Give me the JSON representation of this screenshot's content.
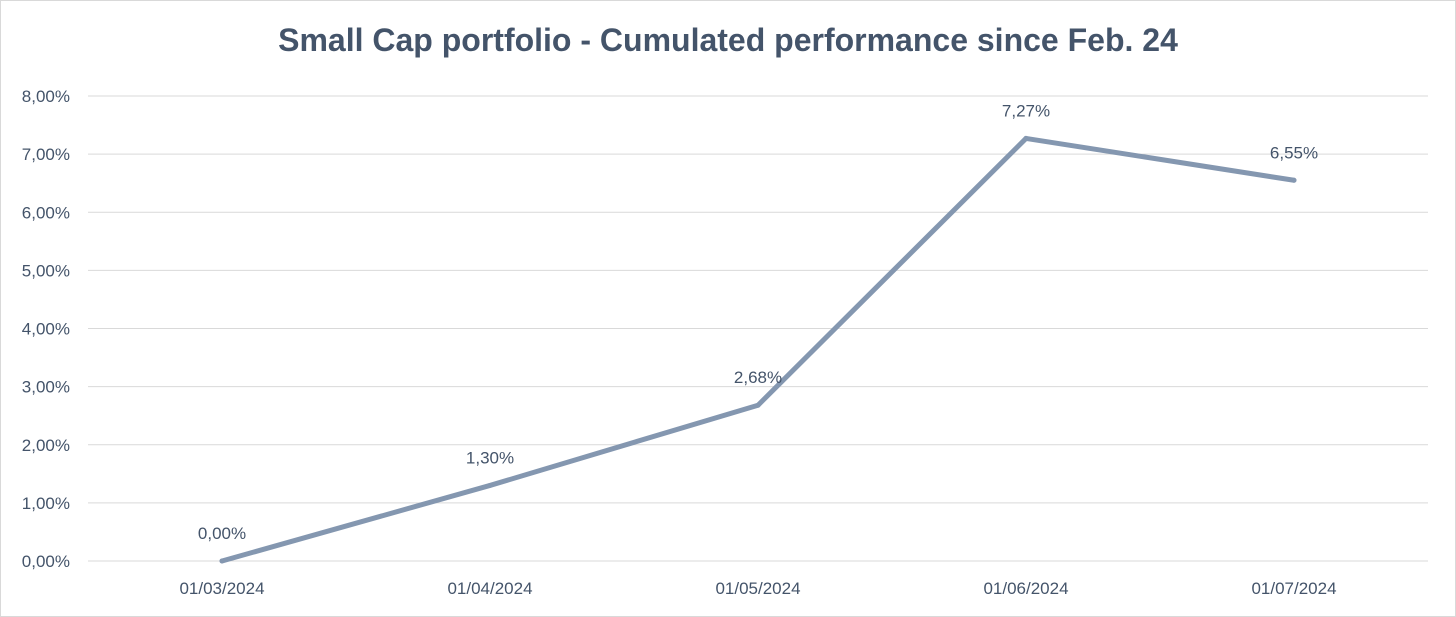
{
  "chart_data": {
    "type": "line",
    "title": "Small Cap portfolio - Cumulated performance since Feb. 24",
    "xlabel": "",
    "ylabel": "",
    "categories": [
      "01/03/2024",
      "01/04/2024",
      "01/05/2024",
      "01/06/2024",
      "01/07/2024"
    ],
    "values": [
      0.0,
      1.3,
      2.68,
      7.27,
      6.55
    ],
    "data_labels": [
      "0,00%",
      "1,30%",
      "2,68%",
      "7,27%",
      "6,55%"
    ],
    "ylim": [
      0,
      8
    ],
    "yticks": [
      0,
      1,
      2,
      3,
      4,
      5,
      6,
      7,
      8
    ],
    "ytick_labels": [
      "0,00%",
      "1,00%",
      "2,00%",
      "3,00%",
      "4,00%",
      "5,00%",
      "6,00%",
      "7,00%",
      "8,00%"
    ],
    "grid": true,
    "legend": "none",
    "line_color": "#8497b0",
    "grid_color": "#d9d9d9",
    "text_color": "#44546a"
  }
}
